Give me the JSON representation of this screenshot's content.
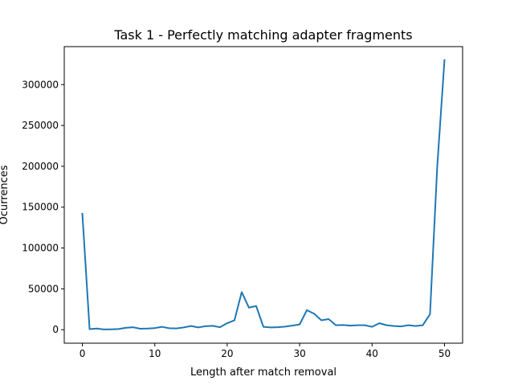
{
  "chart_data": {
    "type": "line",
    "title": "Task 1 - Perfectly matching adapter fragments",
    "xlabel": "Length after match removal",
    "ylabel": "Ocurrences",
    "xlim": [
      -2.5,
      52.5
    ],
    "ylim": [
      -16500,
      346500
    ],
    "xticks": [
      0,
      10,
      20,
      30,
      40,
      50
    ],
    "yticks": [
      0,
      50000,
      100000,
      150000,
      200000,
      250000,
      300000
    ],
    "grid": false,
    "legend": "none",
    "line_color": "#1f77b4",
    "series": [
      {
        "x": [
          0,
          1,
          2,
          3,
          4,
          5,
          6,
          7,
          8,
          9,
          10,
          11,
          12,
          13,
          14,
          15,
          16,
          17,
          18,
          19,
          20,
          21,
          22,
          23,
          24,
          25,
          26,
          27,
          28,
          29,
          30,
          31,
          32,
          33,
          34,
          35,
          36,
          37,
          38,
          39,
          40,
          41,
          42,
          43,
          44,
          45,
          46,
          47,
          48,
          49,
          50
        ],
        "values": [
          142000,
          700,
          1400,
          300,
          500,
          800,
          2300,
          3000,
          1200,
          1500,
          2000,
          3500,
          1800,
          1600,
          2800,
          4500,
          2800,
          4300,
          4800,
          3000,
          8000,
          11500,
          46000,
          27000,
          29000,
          3500,
          2800,
          3000,
          3800,
          5000,
          6500,
          24000,
          19500,
          11500,
          13000,
          5500,
          5700,
          5000,
          5500,
          5500,
          3500,
          8000,
          5500,
          4500,
          4000,
          5500,
          4500,
          5500,
          19000,
          200000,
          330000
        ]
      }
    ]
  }
}
